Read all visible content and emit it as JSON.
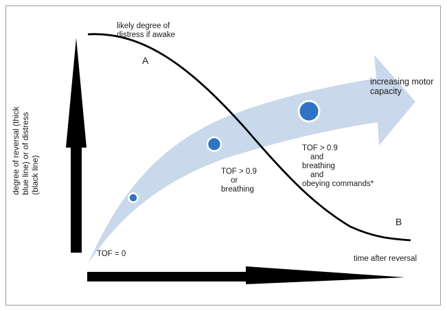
{
  "labels": {
    "distress": [
      "likely degree of",
      "distress if awake"
    ],
    "point_a": "A",
    "point_b": "B",
    "motor": [
      "increasing motor",
      "capacity"
    ],
    "tof_zero": "TOF = 0",
    "tof_or": [
      "TOF > 0.9",
      "or",
      "breathing"
    ],
    "tof_and": [
      "TOF > 0.9",
      "and",
      "breathing",
      "and",
      "obeying commands*"
    ],
    "x_axis": "time after reversal",
    "y_axis": [
      "degree of reversal (thick",
      "blue line) or of distress",
      "(black line)"
    ]
  },
  "colors": {
    "band": "#c9d8ea",
    "dot": "#2f74c4",
    "dot_ring": "#ffffff",
    "axis": "#000000",
    "curve": "#000000"
  }
}
